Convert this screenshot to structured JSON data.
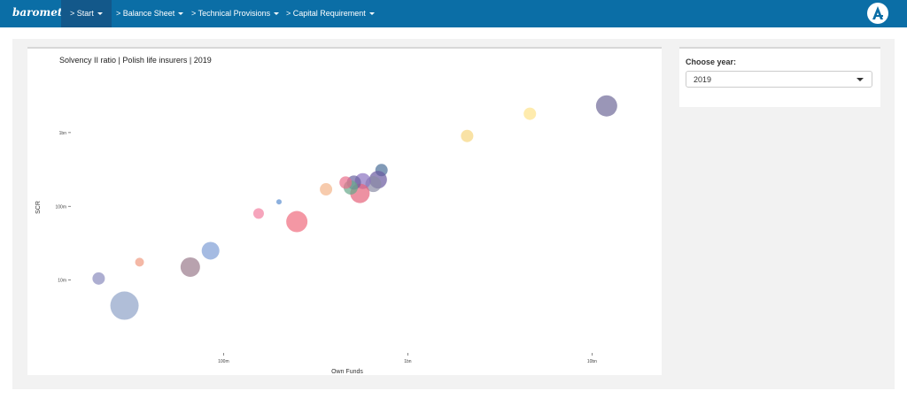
{
  "nav": {
    "brand": "barometer",
    "items": [
      {
        "label": "> Start",
        "active": true
      },
      {
        "label": "> Balance Sheet",
        "active": false
      },
      {
        "label": "> Technical Provisions",
        "active": false
      },
      {
        "label": "> Capital Requirement",
        "active": false
      }
    ],
    "logo_icon": "a-logo-icon"
  },
  "sidebar": {
    "label": "Choose year:",
    "selected": "2019"
  },
  "chart_data": {
    "type": "scatter",
    "title": "Solvency II ratio | Polish life insurers | 2019",
    "xlabel": "Own Funds",
    "ylabel": "SCR",
    "x_scale": "log",
    "y_scale": "log",
    "x_ticks": [
      {
        "value": 100000000,
        "label": "100m"
      },
      {
        "value": 1000000000,
        "label": "1bn"
      },
      {
        "value": 10000000000,
        "label": "10bn"
      }
    ],
    "y_ticks": [
      {
        "value": 10000000,
        "label": "10m"
      },
      {
        "value": 100000000,
        "label": "100m"
      },
      {
        "value": 1000000000,
        "label": "1bn"
      }
    ],
    "xlim": [
      15000000,
      20000000000
    ],
    "ylim": [
      1000000,
      6000000000
    ],
    "points": [
      {
        "x": 12000000000,
        "y": 2300000000,
        "size": 12,
        "color": "#6f6a98"
      },
      {
        "x": 4600000000,
        "y": 1800000000,
        "size": 7,
        "color": "#fde28a"
      },
      {
        "x": 2100000000,
        "y": 900000000,
        "size": 7,
        "color": "#f7d67f"
      },
      {
        "x": 720000000,
        "y": 310000000,
        "size": 7,
        "color": "#4c6f99"
      },
      {
        "x": 690000000,
        "y": 230000000,
        "size": 10,
        "color": "#6a5a9f"
      },
      {
        "x": 650000000,
        "y": 200000000,
        "size": 9,
        "color": "#8a8ca5"
      },
      {
        "x": 570000000,
        "y": 220000000,
        "size": 9,
        "color": "#8a72c1"
      },
      {
        "x": 550000000,
        "y": 150000000,
        "size": 11,
        "color": "#e6627a"
      },
      {
        "x": 510000000,
        "y": 210000000,
        "size": 8,
        "color": "#6a63a0"
      },
      {
        "x": 490000000,
        "y": 180000000,
        "size": 8,
        "color": "#66a88a"
      },
      {
        "x": 460000000,
        "y": 210000000,
        "size": 7,
        "color": "#ea6f8b"
      },
      {
        "x": 360000000,
        "y": 170000000,
        "size": 7,
        "color": "#f3b58a"
      },
      {
        "x": 250000000,
        "y": 62000000,
        "size": 12,
        "color": "#f06b7e"
      },
      {
        "x": 200000000,
        "y": 115000000,
        "size": 3,
        "color": "#5b8fd0"
      },
      {
        "x": 155000000,
        "y": 80000000,
        "size": 6,
        "color": "#f27fa0"
      },
      {
        "x": 85000000,
        "y": 25000000,
        "size": 10,
        "color": "#7f9ed6"
      },
      {
        "x": 66000000,
        "y": 15000000,
        "size": 11,
        "color": "#9a7a8c"
      },
      {
        "x": 35000000,
        "y": 17500000,
        "size": 5,
        "color": "#f09a80"
      },
      {
        "x": 29000000,
        "y": 4500000,
        "size": 16,
        "color": "#8fa3c7"
      },
      {
        "x": 21000000,
        "y": 10500000,
        "size": 7,
        "color": "#8a8bbd"
      }
    ]
  }
}
